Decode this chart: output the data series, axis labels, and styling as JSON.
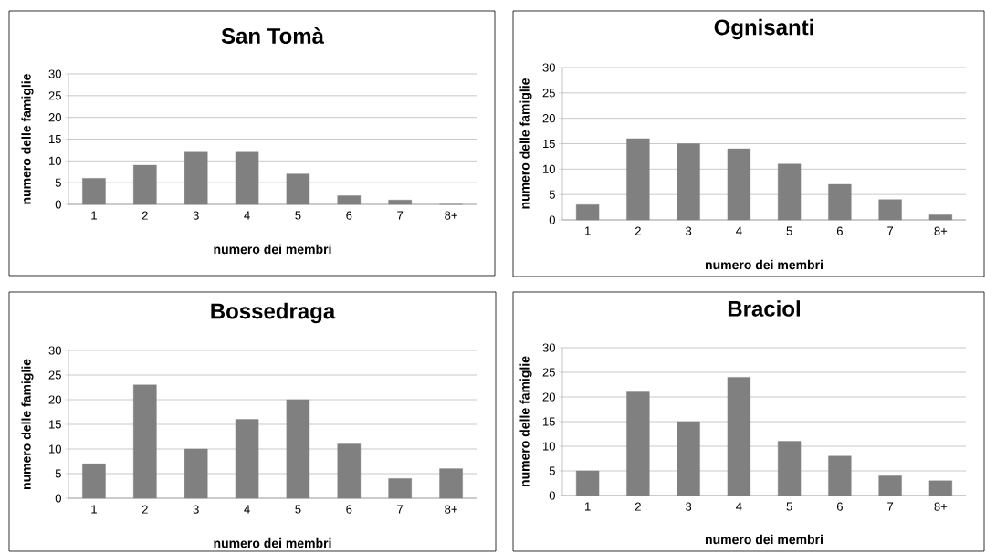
{
  "chart_data": [
    {
      "type": "bar",
      "title": "San Tomà",
      "xlabel": "numero dei membri",
      "ylabel": "numero delle famiglie",
      "categories": [
        "1",
        "2",
        "3",
        "4",
        "5",
        "6",
        "7",
        "8+"
      ],
      "values": [
        6,
        9,
        12,
        12,
        7,
        2,
        1,
        0
      ],
      "color": "#808080",
      "ylim": [
        0,
        30
      ],
      "yticks": [
        0,
        5,
        10,
        15,
        20,
        25,
        30
      ],
      "grid": "y"
    },
    {
      "type": "bar",
      "title": "Ognisanti",
      "xlabel": "numero dei membri",
      "ylabel": "numero delle famiglie",
      "categories": [
        "1",
        "2",
        "3",
        "4",
        "5",
        "6",
        "7",
        "8+"
      ],
      "values": [
        3,
        16,
        15,
        14,
        11,
        7,
        4,
        1
      ],
      "color": "#808080",
      "ylim": [
        0,
        30
      ],
      "yticks": [
        0,
        5,
        10,
        15,
        20,
        25,
        30
      ],
      "grid": "y"
    },
    {
      "type": "bar",
      "title": "Bossedraga",
      "xlabel": "numero dei membri",
      "ylabel": "numero delle famiglie",
      "categories": [
        "1",
        "2",
        "3",
        "4",
        "5",
        "6",
        "7",
        "8+"
      ],
      "values": [
        7,
        23,
        10,
        16,
        20,
        11,
        4,
        6
      ],
      "color": "#808080",
      "ylim": [
        0,
        30
      ],
      "yticks": [
        0,
        5,
        10,
        15,
        20,
        25,
        30
      ],
      "grid": "y"
    },
    {
      "type": "bar",
      "title": "Braciol",
      "xlabel": "numero dei membri",
      "ylabel": "numero delle famiglie",
      "categories": [
        "1",
        "2",
        "3",
        "4",
        "5",
        "6",
        "7",
        "8+"
      ],
      "values": [
        5,
        21,
        15,
        24,
        11,
        8,
        4,
        3
      ],
      "color": "#808080",
      "ylim": [
        0,
        30
      ],
      "yticks": [
        0,
        5,
        10,
        15,
        20,
        25,
        30
      ],
      "grid": "y"
    }
  ]
}
